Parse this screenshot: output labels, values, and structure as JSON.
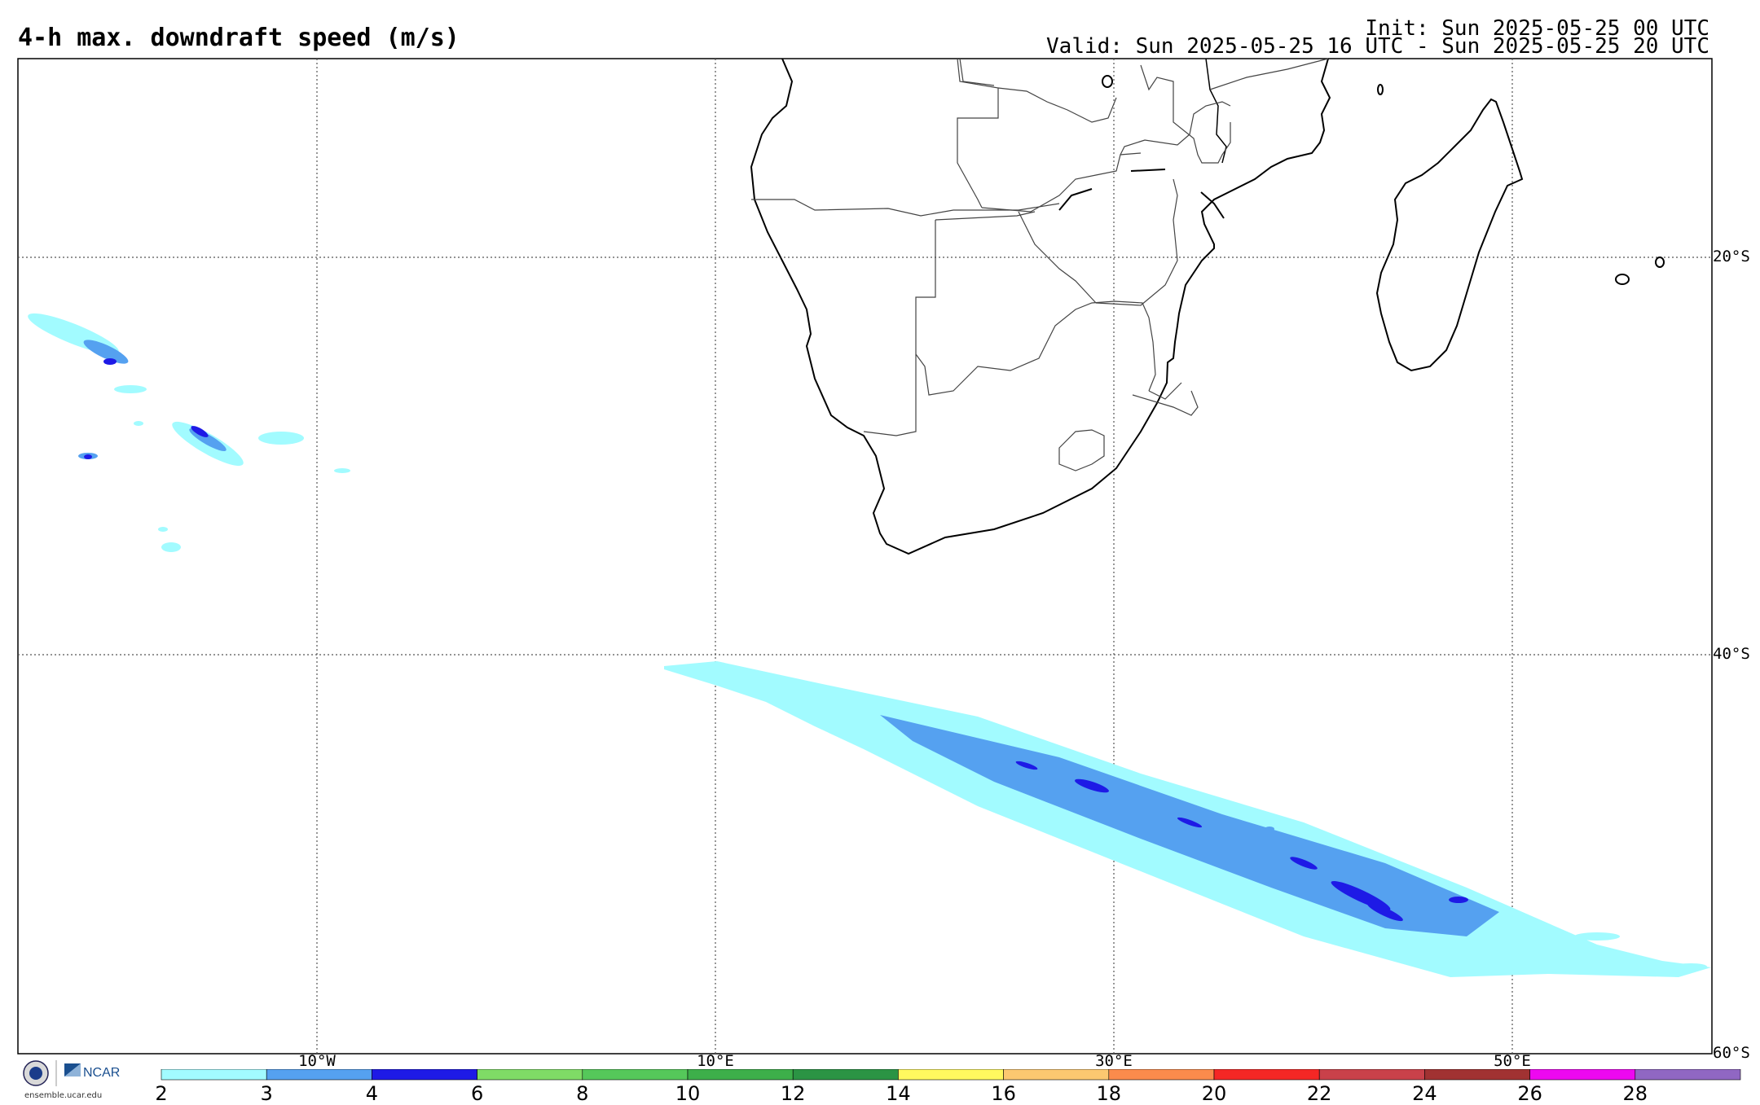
{
  "header": {
    "title": "4-h max. downdraft speed (m/s)",
    "init": "Init: Sun 2025-05-25 00 UTC",
    "valid": "Valid: Sun 2025-05-25 16 UTC - Sun 2025-05-25 20 UTC"
  },
  "map": {
    "lat_labels": [
      "20°S",
      "40°S",
      "60°S"
    ],
    "lon_labels": [
      "10°W",
      "10°E",
      "30°E",
      "50°E"
    ]
  },
  "colorbar": {
    "ticks": [
      "2",
      "3",
      "4",
      "6",
      "8",
      "10",
      "12",
      "14",
      "16",
      "18",
      "20",
      "22",
      "24",
      "26",
      "28"
    ],
    "colors": [
      "#a2fbff",
      "#55a1f0",
      "#1e1ae6",
      "#7fdb66",
      "#55c85a",
      "#3daf4a",
      "#2b9444",
      "#fff95f",
      "#fcc870",
      "#fb8b4c",
      "#f52725",
      "#c9414a",
      "#a13232",
      "#ed08f0",
      "#9067c3"
    ]
  },
  "footer": {
    "logo_text": "NCAR",
    "url": "ensemble.ucar.edu"
  }
}
